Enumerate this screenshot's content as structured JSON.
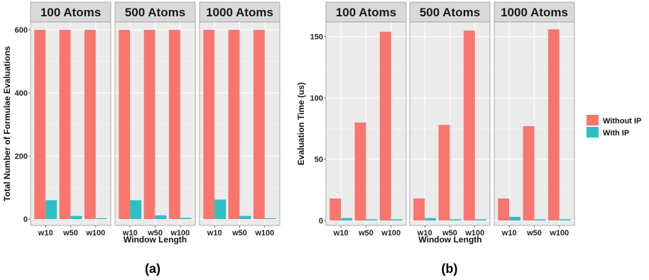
{
  "colors": {
    "without_ip": "#F8766D",
    "with_ip": "#2EBFC2",
    "panel_bg": "#EBEBEB",
    "strip_bg": "#D9D9D9",
    "grid": "#FFFFFF"
  },
  "legend": {
    "items": [
      {
        "label": "Without IP",
        "color": "#F8766D"
      },
      {
        "label": "With IP",
        "color": "#2EBFC2"
      }
    ]
  },
  "chart_data": [
    {
      "type": "bar",
      "caption": "(a)",
      "xlabel": "Window Length",
      "ylabel": "Total Number of Formulae Evaluations",
      "ylim": [
        -20,
        625
      ],
      "yticks": [
        0,
        200,
        400,
        600
      ],
      "categories": [
        "w10",
        "w50",
        "w100"
      ],
      "facets": [
        {
          "label": "100 Atoms",
          "series": [
            {
              "name": "Without IP",
              "values": [
                600,
                600,
                600
              ]
            },
            {
              "name": "With IP",
              "values": [
                60,
                10,
                3
              ]
            }
          ]
        },
        {
          "label": "500 Atoms",
          "series": [
            {
              "name": "Without IP",
              "values": [
                600,
                600,
                600
              ]
            },
            {
              "name": "With IP",
              "values": [
                60,
                12,
                4
              ]
            }
          ]
        },
        {
          "label": "1000 Atoms",
          "series": [
            {
              "name": "Without IP",
              "values": [
                600,
                600,
                600
              ]
            },
            {
              "name": "With IP",
              "values": [
                62,
                10,
                3
              ]
            }
          ]
        }
      ]
    },
    {
      "type": "bar",
      "caption": "(b)",
      "xlabel": "Window Length",
      "ylabel": "Evaluation Time (us)",
      "ylim": [
        -4,
        162
      ],
      "yticks": [
        0,
        50,
        100,
        150
      ],
      "categories": [
        "w10",
        "w50",
        "w100"
      ],
      "facets": [
        {
          "label": "100 Atoms",
          "series": [
            {
              "name": "Without IP",
              "values": [
                18,
                80,
                154
              ]
            },
            {
              "name": "With IP",
              "values": [
                2,
                1,
                1
              ]
            }
          ]
        },
        {
          "label": "500 Atoms",
          "series": [
            {
              "name": "Without IP",
              "values": [
                18,
                78,
                155
              ]
            },
            {
              "name": "With IP",
              "values": [
                2,
                1,
                1
              ]
            }
          ]
        },
        {
          "label": "1000 Atoms",
          "series": [
            {
              "name": "Without IP",
              "values": [
                18,
                77,
                156
              ]
            },
            {
              "name": "With IP",
              "values": [
                3,
                1,
                1
              ]
            }
          ]
        }
      ]
    }
  ]
}
